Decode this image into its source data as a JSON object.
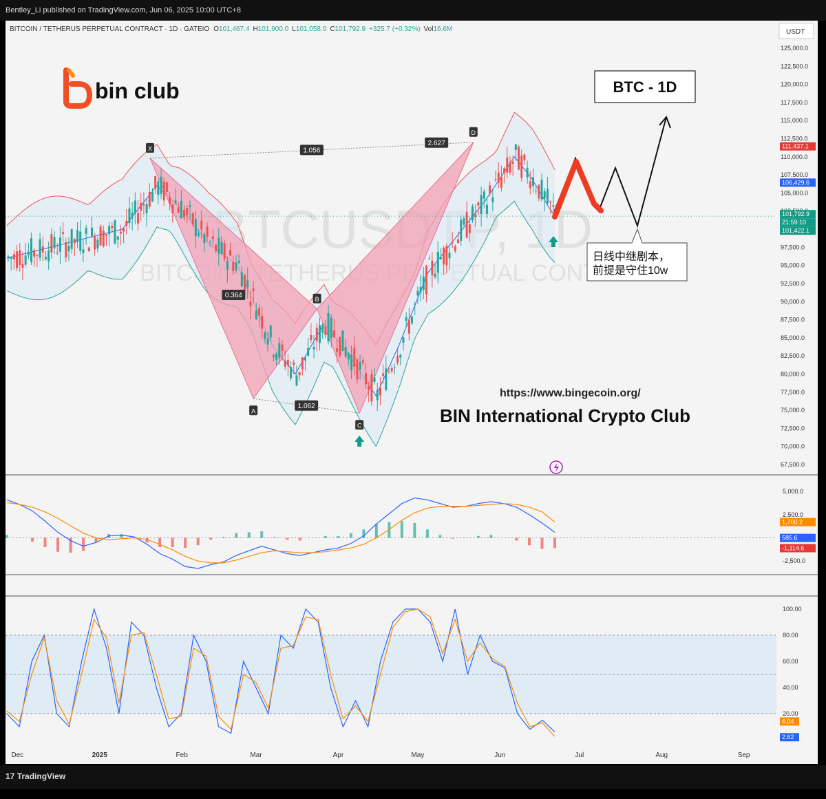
{
  "publisher_line": "Bentley_Li published on TradingView.com, Jun 06, 2025 10:00 UTC+8",
  "footer": {
    "logo_text": "TradingView",
    "logo_glyph": "17"
  },
  "colors": {
    "up": "#26a69a",
    "down": "#ef5350",
    "harmonic_fill": "#f2a0b4",
    "band_fill": "#d9e8f5",
    "macd_line": "#2962ff",
    "signal_line": "#ff8a00"
  },
  "header": {
    "symbol": "BITCOIN / TETHERUS PERPETUAL CONTRACT · 1D · GATEIO",
    "o_label": "O",
    "o": "101,467.4",
    "h_label": "H",
    "h": "101,900.0",
    "l_label": "L",
    "l": "101,058.0",
    "c_label": "C",
    "c": "101,792.9",
    "change": "+325.7 (+0.32%)",
    "vol_label": "Vol",
    "vol": "16.6M",
    "currency": "USDT"
  },
  "logo": {
    "text": "bin club"
  },
  "watermark": {
    "main": "BTCUSDTP, 1D",
    "sub": "BITCOIN / TETHERUS PERPETUAL CONTRACT"
  },
  "box_label": "BTC - 1D",
  "callout": {
    "line1": "日线中继剧本，",
    "line2": "前提是守住10w"
  },
  "site": {
    "url": "https://www.bingecoin.org/",
    "club": "BIN International Crypto Club"
  },
  "pattern": {
    "points": [
      "X",
      "A",
      "B",
      "C",
      "D"
    ],
    "ratios": {
      "xd": "1.056",
      "xa_ab": "0.364",
      "bc_cd": "2.627",
      "ac": "1.062"
    }
  },
  "price_badges": {
    "upper": "111,437.1",
    "mid": "106,429.6",
    "last": "101,792.9",
    "countdown": "21:59:10",
    "lower": "101,422.1"
  },
  "macd_badges": {
    "signal": "1,700.2",
    "macd": "585.6",
    "hist": "-1,114.6"
  },
  "stoch_badges": {
    "k": "6.04",
    "d": "2.62"
  },
  "chart_data": [
    {
      "type": "candlestick",
      "title": "BTCUSDTP, 1D",
      "pattern": "harmonic XABCD",
      "x_labels": [
        "Dec",
        "2025",
        "Feb",
        "Mar",
        "Apr",
        "May",
        "Jun",
        "Jul",
        "Aug",
        "Sep"
      ],
      "y_ticks": [
        "125,000.0",
        "122,500.0",
        "120,000.0",
        "117,500.0",
        "115,000.0",
        "112,500.0",
        "110,000.0",
        "107,500.0",
        "105,000.0",
        "102,500.0",
        "97,500.0",
        "95,000.0",
        "92,500.0",
        "90,000.0",
        "87,500.0",
        "85,000.0",
        "82,500.0",
        "80,000.0",
        "77,500.0",
        "75,000.0",
        "72,500.0",
        "70,000.0",
        "67,500.0"
      ],
      "ylim": [
        67500,
        125000
      ],
      "xabcd": [
        {
          "label": "X",
          "date": "2025-01-20",
          "price": 109800
        },
        {
          "label": "A",
          "date": "2025-02-28",
          "price": 76600
        },
        {
          "label": "B",
          "date": "2025-03-24",
          "price": 89000
        },
        {
          "label": "C",
          "date": "2025-04-09",
          "price": 74600
        },
        {
          "label": "D",
          "date": "2025-05-22",
          "price": 112000
        }
      ],
      "bollinger": {
        "upper_last": 111437.1,
        "mid_last": 106429.6,
        "lower_last": 101422.1
      },
      "last_price": 101792.9
    },
    {
      "type": "line",
      "title": "MACD",
      "y_ticks": [
        "5,000.0",
        "2,500.0",
        "-2,500.0"
      ],
      "ylim": [
        -3600,
        6200
      ],
      "series": [
        {
          "values": [
            4100,
            3600,
            2900,
            1800,
            600,
            -300,
            -900,
            -500,
            200,
            300,
            100,
            -700,
            -1700,
            -2300,
            -3100,
            -3300,
            -2900,
            -2600,
            -1900,
            -1400,
            -900,
            -1300,
            -1700,
            -1900,
            -1600,
            -1300,
            -1100,
            -600,
            200,
            1500,
            2600,
            3700,
            4300,
            4100,
            3700,
            3300,
            3400,
            3700,
            3900,
            3700,
            3300,
            2500,
            1600,
            585.6
          ]
        },
        {
          "values": [
            3800,
            3600,
            3300,
            2800,
            2100,
            1300,
            500,
            0,
            -200,
            -100,
            0,
            -200,
            -700,
            -1300,
            -2000,
            -2500,
            -2700,
            -2700,
            -2400,
            -2000,
            -1600,
            -1400,
            -1500,
            -1600,
            -1600,
            -1500,
            -1300,
            -1100,
            -700,
            0,
            900,
            1900,
            2700,
            3200,
            3400,
            3400,
            3400,
            3500,
            3600,
            3700,
            3600,
            3300,
            2800,
            1700.2
          ]
        }
      ]
    },
    {
      "type": "line",
      "title": "Stochastic RSI",
      "y_ticks": [
        "100.00",
        "80.00",
        "60.00",
        "40.00",
        "20.00"
      ],
      "ylim": [
        0,
        100
      ],
      "series": [
        {
          "values": [
            20,
            10,
            60,
            80,
            20,
            10,
            60,
            100,
            70,
            20,
            90,
            80,
            40,
            10,
            20,
            80,
            60,
            10,
            5,
            60,
            40,
            20,
            80,
            70,
            100,
            90,
            40,
            10,
            30,
            10,
            60,
            90,
            100,
            100,
            90,
            60,
            100,
            50,
            80,
            60,
            55,
            20,
            8,
            15,
            6.04
          ]
        },
        {
          "values": [
            22,
            14,
            50,
            78,
            30,
            12,
            50,
            92,
            78,
            28,
            80,
            82,
            50,
            16,
            18,
            70,
            64,
            18,
            8,
            50,
            44,
            24,
            70,
            72,
            94,
            92,
            50,
            16,
            26,
            14,
            50,
            86,
            98,
            100,
            94,
            66,
            92,
            60,
            74,
            62,
            56,
            28,
            10,
            13,
            2.62
          ]
        }
      ]
    }
  ]
}
